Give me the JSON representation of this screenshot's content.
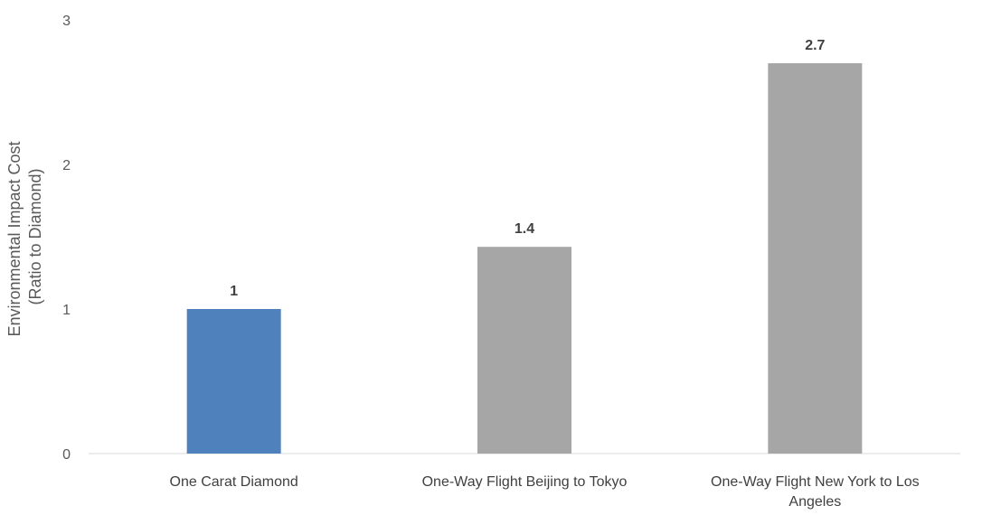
{
  "chart_data": {
    "type": "bar",
    "categories": [
      "One Carat Diamond",
      "One-Way Flight Beijing to Tokyo",
      "One-Way Flight New York to Los Angeles"
    ],
    "values": [
      1,
      1.43,
      2.7
    ],
    "data_labels": [
      "1",
      "1.4",
      "2.7"
    ],
    "bar_colors": [
      "#4f81bd",
      "#a6a6a6",
      "#a6a6a6"
    ],
    "ylabel_line1": "Environmental Impact Cost",
    "ylabel_line2": "(Ratio to Diamond)",
    "ylim": [
      0,
      3
    ],
    "yticks": [
      0,
      1,
      2,
      3
    ],
    "grid": false
  }
}
